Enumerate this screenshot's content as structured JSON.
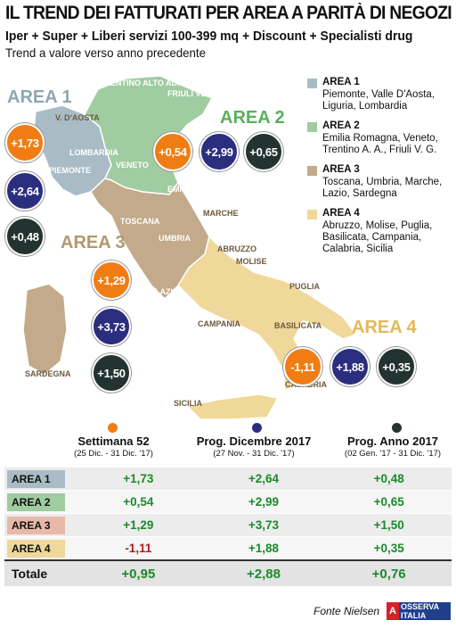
{
  "title": "IL TREND DEI FATTURATI PER AREA A PARITÀ DI NEGOZI",
  "subtitle": "Iper + Super + Liberi servizi 100-399 mq + Discount + Specialisti drug",
  "subtitle2": "Trend a valore verso anno precedente",
  "colors": {
    "area1": "#a9bcc6",
    "area2": "#9fcca0",
    "area3": "#c2aa8a",
    "area4": "#f0d79a",
    "orange": "#f07d14",
    "blue": "#2b2e7f",
    "dark": "#233330",
    "positive": "#1c8a2a",
    "negative": "#b01c1c"
  },
  "map": {
    "area_titles": [
      "AREA 1",
      "AREA 2",
      "AREA 3",
      "AREA 4"
    ],
    "regions": [
      "TRENTINO ALTO ADIGE",
      "FRIULI VENEZIA GIULIA",
      "V. D'AOSTA",
      "LOMBARDIA",
      "PIEMONTE",
      "VENETO",
      "LIGURIA",
      "EMILIA ROMAGNA",
      "TOSCANA",
      "MARCHE",
      "UMBRIA",
      "ABRUZZO",
      "MOLISE",
      "LAZIO",
      "PUGLIA",
      "CAMPANIA",
      "BASILICATA",
      "SARDEGNA",
      "CALABRIA",
      "SICILIA"
    ]
  },
  "legend": [
    {
      "title": "AREA 1",
      "text": "Piemonte, Valle D'Aosta, Liguria, Lombardia"
    },
    {
      "title": "AREA 2",
      "text": "Emilia Romagna, Veneto, Trentino A. A., Friuli V. G."
    },
    {
      "title": "AREA 3",
      "text": "Toscana, Umbria, Marche, Lazio, Sardegna"
    },
    {
      "title": "AREA 4",
      "text": "Abruzzo, Molise, Puglia, Basilicata, Campania, Calabria, Sicilia"
    }
  ],
  "columns": [
    {
      "title": "Settimana 52",
      "period": "(25 Dic. - 31 Dic. '17)"
    },
    {
      "title": "Prog. Dicembre 2017",
      "period": "(27 Nov. - 31 Dic. '17)"
    },
    {
      "title": "Prog. Anno 2017",
      "period": "(02 Gen. '17 - 31 Dic. '17)"
    }
  ],
  "chart_data": {
    "type": "table",
    "title": "IL TREND DEI FATTURATI PER AREA A PARITÀ DI NEGOZI",
    "columns": [
      "Settimana 52",
      "Prog. Dicembre 2017",
      "Prog. Anno 2017"
    ],
    "rows": [
      {
        "label": "AREA 1",
        "values": [
          "+1,73",
          "+2,64",
          "+0,48"
        ]
      },
      {
        "label": "AREA 2",
        "values": [
          "+0,54",
          "+2,99",
          "+0,65"
        ]
      },
      {
        "label": "AREA 3",
        "values": [
          "+1,29",
          "+3,73",
          "+1,50"
        ]
      },
      {
        "label": "AREA 4",
        "values": [
          "-1,11",
          "+1,88",
          "+0,35"
        ]
      },
      {
        "label": "Totale",
        "values": [
          "+0,95",
          "+2,88",
          "+0,76"
        ]
      }
    ]
  },
  "source": "Fonte Nielsen",
  "logo": {
    "mark": "A",
    "text": "OSSERVA ITALIA"
  }
}
